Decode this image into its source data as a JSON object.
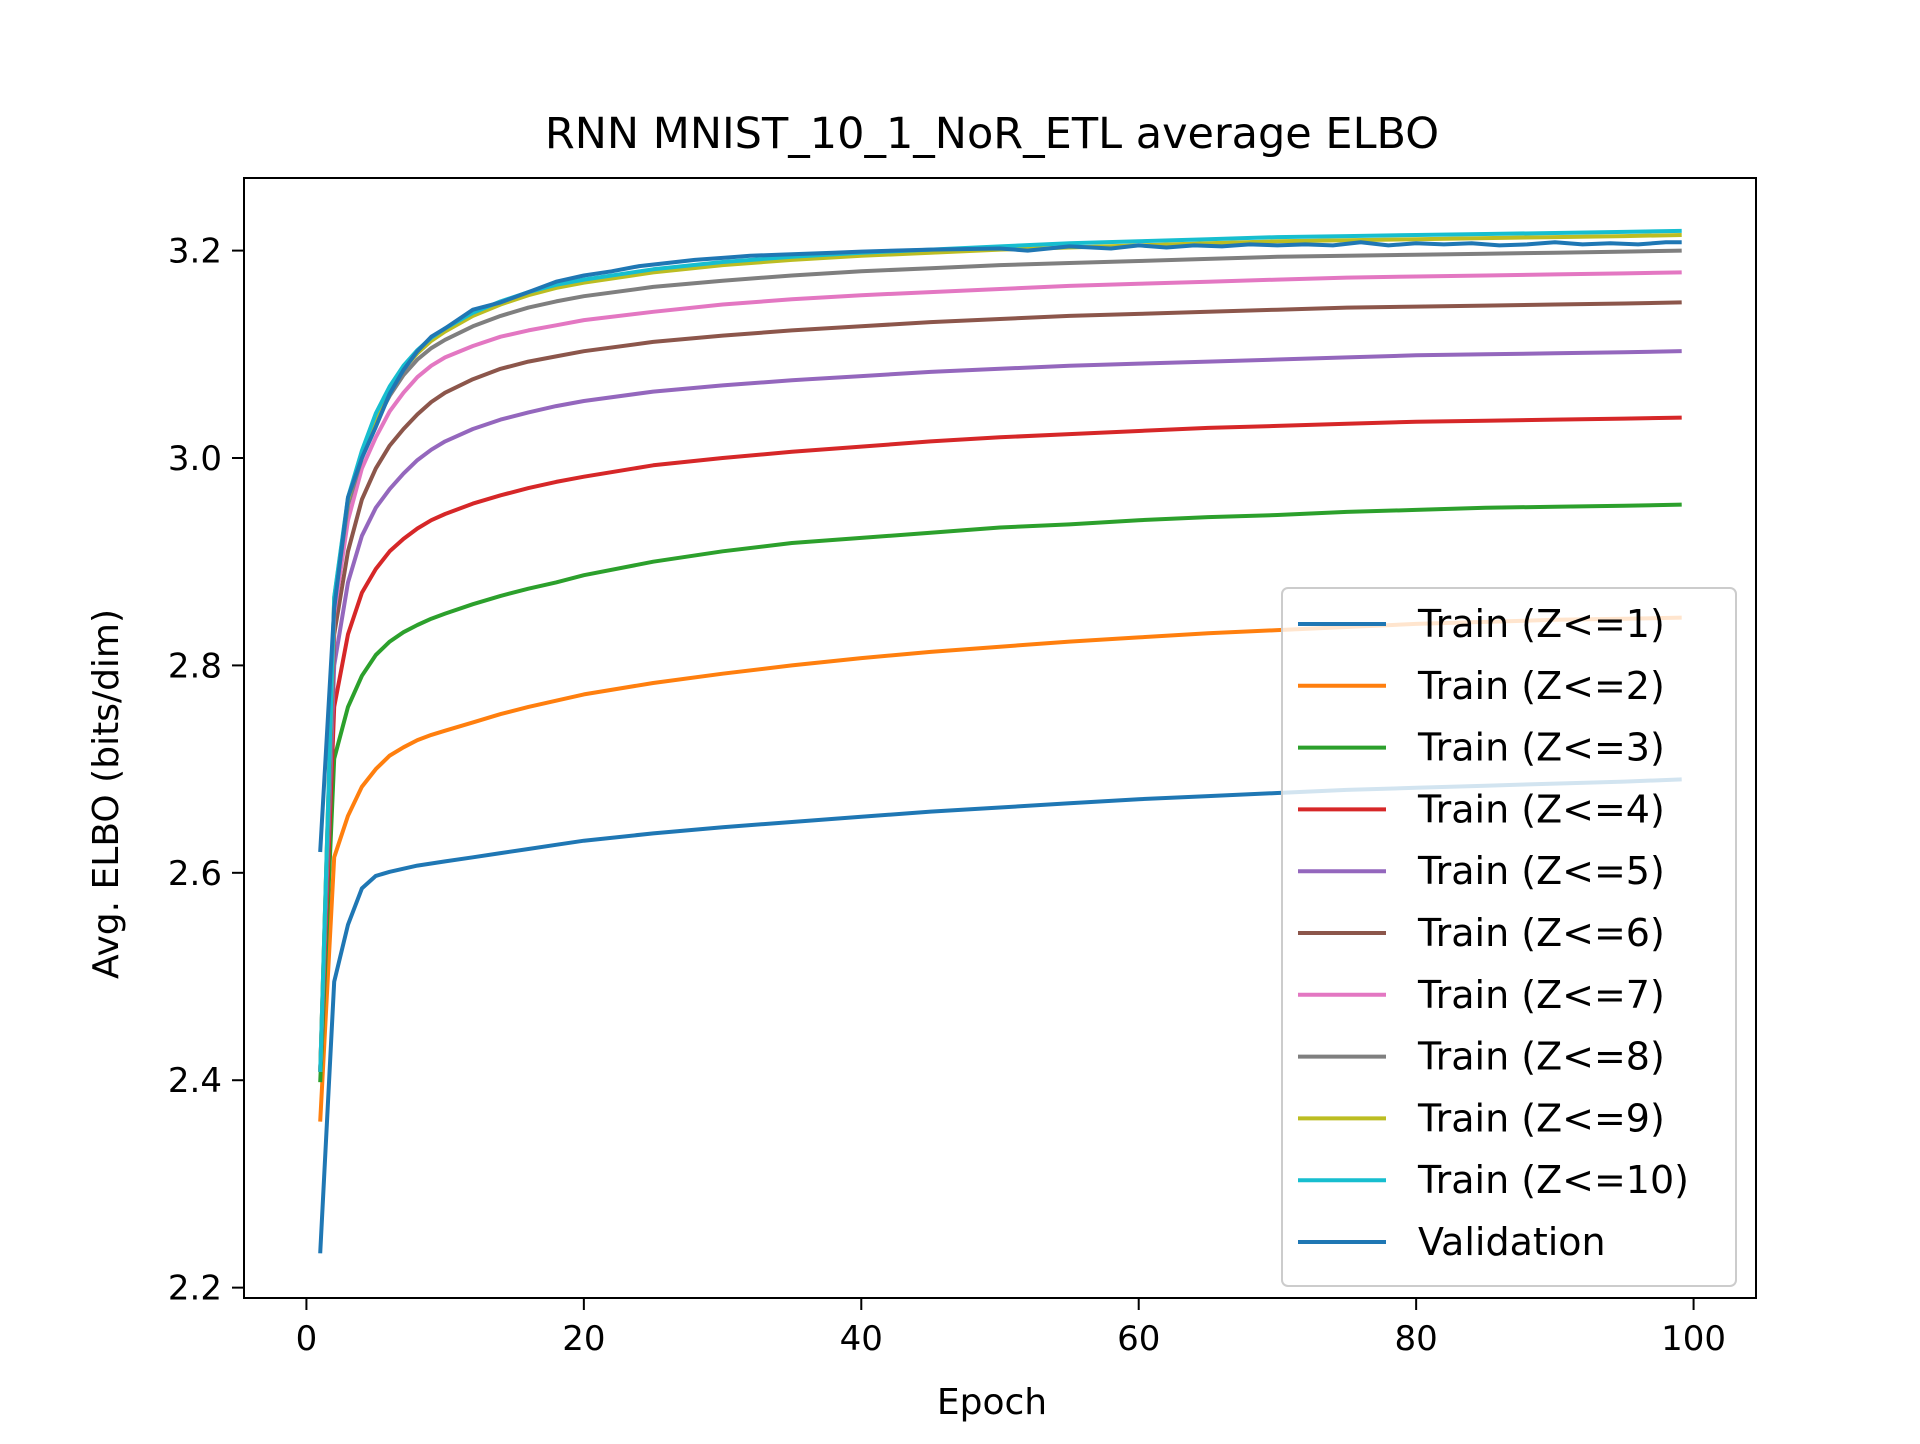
{
  "chart_data": {
    "type": "line",
    "title": "RNN MNIST_10_1_NoR_ETL average ELBO",
    "xlabel": "Epoch",
    "ylabel": "Avg. ELBO (bits/dim)",
    "xlim": [
      -4.5,
      104.5
    ],
    "ylim": [
      2.19,
      3.27
    ],
    "xticks": [
      0,
      20,
      40,
      60,
      80,
      100
    ],
    "yticks": [
      2.2,
      2.4,
      2.6,
      2.8,
      3.0,
      3.2
    ],
    "ytick_labels": [
      "2.2",
      "2.4",
      "2.6",
      "2.8",
      "3.0",
      "3.2"
    ],
    "grid": false,
    "legend_position": "lower-right",
    "series": [
      {
        "name": "Train (Z<=1)",
        "color": "#1f77b4",
        "x": [
          1,
          2,
          3,
          4,
          5,
          6,
          7,
          8,
          9,
          10,
          12,
          14,
          16,
          18,
          20,
          25,
          30,
          35,
          40,
          45,
          50,
          55,
          60,
          65,
          70,
          75,
          80,
          85,
          90,
          95,
          99
        ],
        "y": [
          2.235,
          2.495,
          2.55,
          2.585,
          2.597,
          2.601,
          2.604,
          2.607,
          2.609,
          2.611,
          2.615,
          2.619,
          2.623,
          2.627,
          2.631,
          2.638,
          2.644,
          2.649,
          2.654,
          2.659,
          2.663,
          2.667,
          2.671,
          2.674,
          2.677,
          2.68,
          2.682,
          2.684,
          2.686,
          2.688,
          2.69
        ]
      },
      {
        "name": "Train (Z<=2)",
        "color": "#ff7f0e",
        "x": [
          1,
          2,
          3,
          4,
          5,
          6,
          7,
          8,
          9,
          10,
          12,
          14,
          16,
          18,
          20,
          25,
          30,
          35,
          40,
          45,
          50,
          55,
          60,
          65,
          70,
          75,
          80,
          85,
          90,
          95,
          99
        ],
        "y": [
          2.362,
          2.615,
          2.655,
          2.683,
          2.7,
          2.713,
          2.721,
          2.728,
          2.733,
          2.737,
          2.745,
          2.753,
          2.76,
          2.766,
          2.772,
          2.783,
          2.792,
          2.8,
          2.807,
          2.813,
          2.818,
          2.823,
          2.827,
          2.831,
          2.834,
          2.837,
          2.84,
          2.842,
          2.844,
          2.845,
          2.846
        ]
      },
      {
        "name": "Train (Z<=3)",
        "color": "#2ca02c",
        "x": [
          1,
          2,
          3,
          4,
          5,
          6,
          7,
          8,
          9,
          10,
          12,
          14,
          16,
          18,
          20,
          25,
          30,
          35,
          40,
          45,
          50,
          55,
          60,
          65,
          70,
          75,
          80,
          85,
          90,
          95,
          99
        ],
        "y": [
          2.4,
          2.71,
          2.76,
          2.79,
          2.81,
          2.823,
          2.832,
          2.839,
          2.845,
          2.85,
          2.859,
          2.867,
          2.874,
          2.88,
          2.887,
          2.9,
          2.91,
          2.918,
          2.923,
          2.928,
          2.933,
          2.936,
          2.94,
          2.943,
          2.945,
          2.948,
          2.95,
          2.952,
          2.953,
          2.954,
          2.955
        ]
      },
      {
        "name": "Train (Z<=4)",
        "color": "#d62728",
        "x": [
          1,
          2,
          3,
          4,
          5,
          6,
          7,
          8,
          9,
          10,
          12,
          14,
          16,
          18,
          20,
          25,
          30,
          35,
          40,
          45,
          50,
          55,
          60,
          65,
          70,
          75,
          80,
          85,
          90,
          95,
          99
        ],
        "y": [
          2.41,
          2.76,
          2.83,
          2.87,
          2.893,
          2.91,
          2.922,
          2.932,
          2.94,
          2.946,
          2.956,
          2.964,
          2.971,
          2.977,
          2.982,
          2.993,
          3.0,
          3.006,
          3.011,
          3.016,
          3.02,
          3.023,
          3.026,
          3.029,
          3.031,
          3.033,
          3.035,
          3.036,
          3.037,
          3.038,
          3.039
        ]
      },
      {
        "name": "Train (Z<=5)",
        "color": "#9467bd",
        "x": [
          1,
          2,
          3,
          4,
          5,
          6,
          7,
          8,
          9,
          10,
          12,
          14,
          16,
          18,
          20,
          25,
          30,
          35,
          40,
          45,
          50,
          55,
          60,
          65,
          70,
          75,
          80,
          85,
          90,
          95,
          99
        ],
        "y": [
          2.41,
          2.8,
          2.88,
          2.925,
          2.952,
          2.97,
          2.985,
          2.998,
          3.008,
          3.016,
          3.028,
          3.037,
          3.044,
          3.05,
          3.055,
          3.064,
          3.07,
          3.075,
          3.079,
          3.083,
          3.086,
          3.089,
          3.091,
          3.093,
          3.095,
          3.097,
          3.099,
          3.1,
          3.101,
          3.102,
          3.103
        ]
      },
      {
        "name": "Train (Z<=6)",
        "color": "#8c564b",
        "x": [
          1,
          2,
          3,
          4,
          5,
          6,
          7,
          8,
          9,
          10,
          12,
          14,
          16,
          18,
          20,
          25,
          30,
          35,
          40,
          45,
          50,
          55,
          60,
          65,
          70,
          75,
          80,
          85,
          90,
          95,
          99
        ],
        "y": [
          2.41,
          2.83,
          2.91,
          2.96,
          2.99,
          3.012,
          3.028,
          3.042,
          3.054,
          3.063,
          3.076,
          3.086,
          3.093,
          3.098,
          3.103,
          3.112,
          3.118,
          3.123,
          3.127,
          3.131,
          3.134,
          3.137,
          3.139,
          3.141,
          3.143,
          3.145,
          3.146,
          3.147,
          3.148,
          3.149,
          3.15
        ]
      },
      {
        "name": "Train (Z<=7)",
        "color": "#e377c2",
        "x": [
          1,
          2,
          3,
          4,
          5,
          6,
          7,
          8,
          9,
          10,
          12,
          14,
          16,
          18,
          20,
          25,
          30,
          35,
          40,
          45,
          50,
          55,
          60,
          65,
          70,
          75,
          80,
          85,
          90,
          95,
          99
        ],
        "y": [
          2.41,
          2.85,
          2.94,
          2.99,
          3.02,
          3.045,
          3.063,
          3.078,
          3.089,
          3.097,
          3.108,
          3.117,
          3.123,
          3.128,
          3.133,
          3.141,
          3.148,
          3.153,
          3.157,
          3.16,
          3.163,
          3.166,
          3.168,
          3.17,
          3.172,
          3.174,
          3.175,
          3.176,
          3.177,
          3.178,
          3.179
        ]
      },
      {
        "name": "Train (Z<=8)",
        "color": "#7f7f7f",
        "x": [
          1,
          2,
          3,
          4,
          5,
          6,
          7,
          8,
          9,
          10,
          12,
          14,
          16,
          18,
          20,
          25,
          30,
          35,
          40,
          45,
          50,
          55,
          60,
          65,
          70,
          75,
          80,
          85,
          90,
          95,
          99
        ],
        "y": [
          2.41,
          2.86,
          2.955,
          3.0,
          3.035,
          3.06,
          3.08,
          3.095,
          3.106,
          3.114,
          3.127,
          3.137,
          3.145,
          3.151,
          3.156,
          3.165,
          3.171,
          3.176,
          3.18,
          3.183,
          3.186,
          3.188,
          3.19,
          3.192,
          3.194,
          3.195,
          3.196,
          3.197,
          3.198,
          3.199,
          3.2
        ]
      },
      {
        "name": "Train (Z<=9)",
        "color": "#bcbd22",
        "x": [
          1,
          2,
          3,
          4,
          5,
          6,
          7,
          8,
          9,
          10,
          12,
          14,
          16,
          18,
          20,
          25,
          30,
          35,
          40,
          45,
          50,
          55,
          60,
          65,
          70,
          75,
          80,
          85,
          90,
          95,
          99
        ],
        "y": [
          2.41,
          2.865,
          2.96,
          3.005,
          3.04,
          3.066,
          3.086,
          3.101,
          3.113,
          3.122,
          3.137,
          3.148,
          3.157,
          3.164,
          3.169,
          3.179,
          3.186,
          3.191,
          3.195,
          3.198,
          3.201,
          3.203,
          3.205,
          3.207,
          3.209,
          3.21,
          3.211,
          3.212,
          3.213,
          3.214,
          3.215
        ]
      },
      {
        "name": "Train (Z<=10)",
        "color": "#17becf",
        "x": [
          1,
          2,
          3,
          4,
          5,
          6,
          7,
          8,
          9,
          10,
          12,
          14,
          16,
          18,
          20,
          25,
          30,
          35,
          40,
          45,
          50,
          55,
          60,
          65,
          70,
          75,
          80,
          85,
          90,
          95,
          99
        ],
        "y": [
          2.41,
          2.866,
          2.962,
          3.007,
          3.043,
          3.069,
          3.089,
          3.104,
          3.116,
          3.125,
          3.14,
          3.151,
          3.16,
          3.167,
          3.172,
          3.182,
          3.189,
          3.194,
          3.198,
          3.201,
          3.204,
          3.207,
          3.209,
          3.211,
          3.213,
          3.214,
          3.215,
          3.216,
          3.217,
          3.218,
          3.219
        ]
      },
      {
        "name": "Validation",
        "color": "#1f77b4",
        "x": [
          1,
          2,
          3,
          4,
          5,
          6,
          7,
          8,
          9,
          10,
          12,
          14,
          16,
          18,
          20,
          22,
          24,
          26,
          28,
          30,
          32,
          34,
          36,
          38,
          40,
          45,
          50,
          52,
          55,
          58,
          60,
          62,
          64,
          66,
          68,
          70,
          72,
          74,
          76,
          78,
          80,
          82,
          84,
          86,
          88,
          90,
          92,
          94,
          96,
          98,
          99
        ],
        "y": [
          2.622,
          2.855,
          2.962,
          3.0,
          3.03,
          3.062,
          3.085,
          3.103,
          3.117,
          3.125,
          3.143,
          3.15,
          3.16,
          3.17,
          3.176,
          3.18,
          3.185,
          3.188,
          3.191,
          3.193,
          3.195,
          3.196,
          3.197,
          3.198,
          3.199,
          3.201,
          3.202,
          3.2,
          3.204,
          3.202,
          3.205,
          3.203,
          3.205,
          3.204,
          3.206,
          3.205,
          3.206,
          3.205,
          3.208,
          3.205,
          3.207,
          3.206,
          3.207,
          3.205,
          3.206,
          3.208,
          3.206,
          3.207,
          3.206,
          3.208,
          3.208
        ]
      }
    ]
  }
}
